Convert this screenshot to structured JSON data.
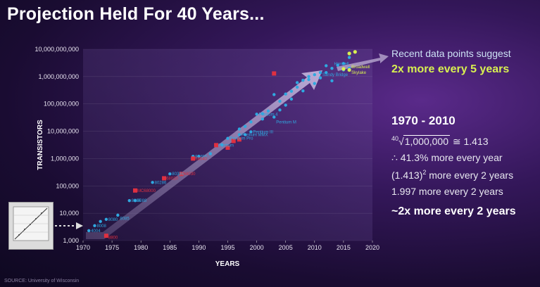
{
  "title": "Projection Held For 40 Years...",
  "callout": {
    "line1": "Recent data points suggest",
    "line2": "2x more every 5 years"
  },
  "math": {
    "heading": "1970 - 2010",
    "root_index": "40",
    "root_radicand": "1,000,000",
    "root_result": "≅ 1.413",
    "line2": "∴ 41.3% more every year",
    "line3_base": "(1.413)",
    "line3_exp": "2",
    "line3_rest": " more every 2 years",
    "line4": "1.997 more every 2 years",
    "line5": "~2x more every 2 years"
  },
  "source": "SOURCE: University of Wisconsin",
  "colors": {
    "cyan": "#2fa8e0",
    "red": "#e03040",
    "yellow": "#d8f050",
    "arrow": "#b8a8d0"
  },
  "chart_data": {
    "type": "scatter",
    "xlabel": "YEARS",
    "ylabel": "TRANSISTORS",
    "xlim": [
      1970,
      2020
    ],
    "ylim": [
      1000,
      10000000000
    ],
    "yscale": "log",
    "x_ticks": [
      "1970",
      "1975",
      "1980",
      "1985",
      "1990",
      "1995",
      "2000",
      "2005",
      "2010",
      "2015",
      "2020"
    ],
    "y_ticks": [
      "1,000",
      "10,000",
      "100,000",
      "1,000,000",
      "10,000,000",
      "100,000,000",
      "1,000,000,000",
      "10,000,000,000"
    ],
    "series": [
      {
        "color": "cyan",
        "points": [
          [
            1971,
            2300
          ],
          [
            1972,
            3500
          ],
          [
            1973,
            5000
          ],
          [
            1974,
            6000
          ],
          [
            1976,
            8500
          ],
          [
            1978,
            29000
          ],
          [
            1979,
            29000
          ],
          [
            1982,
            134000
          ],
          [
            1985,
            275000
          ],
          [
            1989,
            1200000
          ],
          [
            1990,
            1200000
          ],
          [
            1992,
            1500000
          ],
          [
            1993,
            3100000
          ],
          [
            1994,
            3200000
          ],
          [
            1995,
            5500000
          ],
          [
            1996,
            4500000
          ],
          [
            1997,
            7500000
          ],
          [
            1998,
            7500000
          ],
          [
            1999,
            9500000
          ],
          [
            2000,
            42000000
          ],
          [
            2001,
            28000000
          ],
          [
            2002,
            55000000
          ],
          [
            2003,
            220000000
          ],
          [
            2004,
            125000000
          ],
          [
            2005,
            230000000
          ],
          [
            2006,
            290000000
          ],
          [
            2007,
            410000000
          ],
          [
            2008,
            730000000
          ],
          [
            2009,
            780000000
          ],
          [
            2010,
            1170000000
          ],
          [
            2011,
            1400000000
          ],
          [
            2012,
            1400000000
          ],
          [
            2013,
            2000000000
          ],
          [
            2014,
            2600000000
          ],
          [
            2015,
            1750000000
          ],
          [
            2015,
            3000000000
          ],
          [
            2016,
            2000000000
          ],
          [
            2016,
            5000000000
          ],
          [
            2003,
            33000000
          ],
          [
            2006,
            150000000
          ],
          [
            2008,
            300000000
          ],
          [
            2011,
            900000000
          ],
          [
            2001,
            44000000
          ],
          [
            1999,
            22000000
          ],
          [
            1997,
            12000000
          ],
          [
            2012,
            2500000000
          ],
          [
            2009,
            1000000000
          ],
          [
            2005,
            90000000
          ],
          [
            2007,
            600000000
          ],
          [
            2004,
            60000000
          ],
          [
            1998,
            15000000
          ],
          [
            2010,
            560000000
          ],
          [
            2013,
            700000000
          ]
        ]
      },
      {
        "color": "red",
        "points": [
          [
            1974,
            1500
          ],
          [
            1979,
            68000
          ],
          [
            1984,
            190000
          ],
          [
            1987,
            275000
          ],
          [
            1989,
            1000000
          ],
          [
            1993,
            3100000
          ],
          [
            1995,
            2500000
          ],
          [
            1996,
            4400000
          ],
          [
            1997,
            5000000
          ],
          [
            2003,
            1300000000
          ]
        ]
      },
      {
        "color": "yellow",
        "points": [
          [
            2015,
            1900000000
          ],
          [
            2016,
            7000000000
          ],
          [
            2017,
            8000000000
          ],
          [
            2016,
            1750000000
          ]
        ]
      }
    ],
    "labels": [
      {
        "text": "4004",
        "x": 1971,
        "y": 2300,
        "color": "cyan"
      },
      {
        "text": "8008",
        "x": 1972,
        "y": 3500,
        "color": "cyan"
      },
      {
        "text": "8080",
        "x": 1974,
        "y": 6000,
        "color": "cyan"
      },
      {
        "text": "8085",
        "x": 1976,
        "y": 6500,
        "color": "cyan"
      },
      {
        "text": "8800",
        "x": 1974,
        "y": 1300,
        "color": "red"
      },
      {
        "text": "8086",
        "x": 1978,
        "y": 29000,
        "color": "cyan"
      },
      {
        "text": "8088",
        "x": 1979,
        "y": 29000,
        "color": "cyan"
      },
      {
        "text": "MC68000",
        "x": 1979,
        "y": 68000,
        "color": "red"
      },
      {
        "text": "80286",
        "x": 1982,
        "y": 134000,
        "color": "cyan"
      },
      {
        "text": "68020",
        "x": 1984,
        "y": 190000,
        "color": "red"
      },
      {
        "text": "80386",
        "x": 1985,
        "y": 275000,
        "color": "cyan"
      },
      {
        "text": "68030",
        "x": 1987,
        "y": 275000,
        "color": "red"
      },
      {
        "text": "80486",
        "x": 1989,
        "y": 1200000,
        "color": "cyan"
      },
      {
        "text": "68040",
        "x": 1989,
        "y": 1000000,
        "color": "red"
      },
      {
        "text": "Pentium",
        "x": 1993,
        "y": 3100000,
        "color": "cyan"
      },
      {
        "text": "Pentium Pro",
        "x": 1995,
        "y": 5500000,
        "color": "cyan"
      },
      {
        "text": "Pentium MMX",
        "x": 1997,
        "y": 7500000,
        "color": "cyan"
      },
      {
        "text": "Pentium III",
        "x": 1999,
        "y": 9500000,
        "color": "cyan"
      },
      {
        "text": "Pentium 4",
        "x": 2000,
        "y": 42000000,
        "color": "cyan"
      },
      {
        "text": "Pentium M",
        "x": 2003,
        "y": 22000000,
        "color": "cyan"
      },
      {
        "text": "Sandy Bridge",
        "x": 2011,
        "y": 1170000000,
        "color": "cyan"
      },
      {
        "text": "Haswell",
        "x": 2013,
        "y": 3000000000,
        "color": "cyan"
      },
      {
        "text": "Broadwell",
        "x": 2016,
        "y": 2300000000,
        "color": "yellow"
      },
      {
        "text": "Skylake",
        "x": 2016,
        "y": 1400000000,
        "color": "yellow"
      }
    ]
  }
}
